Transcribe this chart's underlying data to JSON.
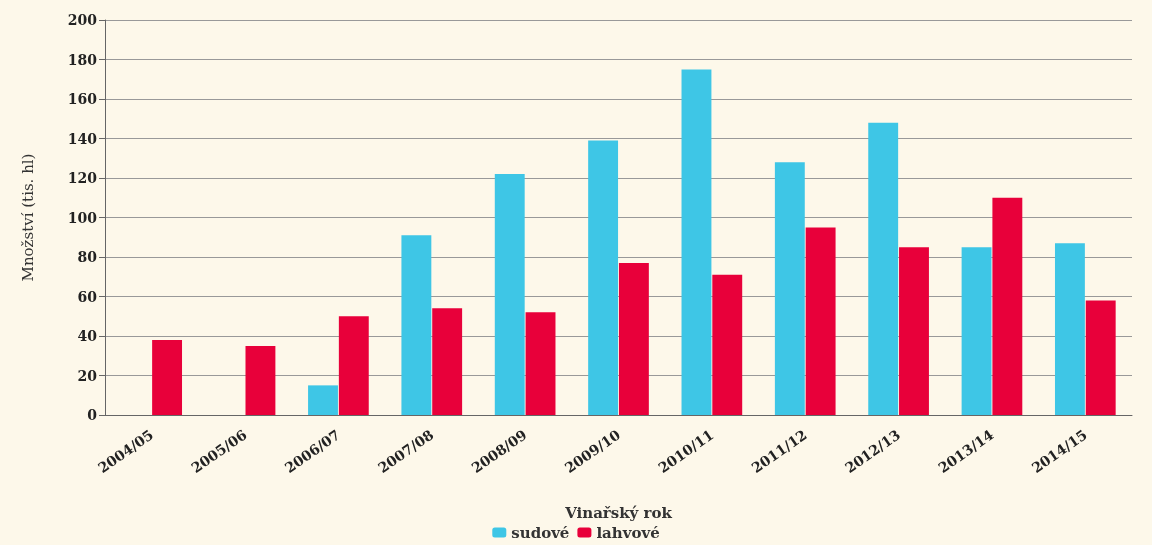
{
  "chart_data": {
    "type": "bar",
    "xlabel": "Vinařský rok",
    "ylabel": "Množství (tis. hl)",
    "categories": [
      "2004/05",
      "2005/06",
      "2006/07",
      "2007/08",
      "2008/09",
      "2009/10",
      "2010/11",
      "2011/12",
      "2012/13",
      "2013/14",
      "2014/15"
    ],
    "series": [
      {
        "name": "sudové",
        "color": "#3ec6e6",
        "values": [
          null,
          null,
          15,
          91,
          122,
          139,
          175,
          128,
          148,
          85,
          87
        ]
      },
      {
        "name": "lahvové",
        "color": "#e8003a",
        "values": [
          38,
          35,
          50,
          54,
          52,
          77,
          71,
          95,
          85,
          110,
          58
        ]
      }
    ],
    "ylim": [
      0,
      200
    ],
    "yticks": [
      0,
      20,
      40,
      60,
      80,
      100,
      120,
      140,
      160,
      180,
      200
    ],
    "grid": "y",
    "legend": "bottom"
  }
}
